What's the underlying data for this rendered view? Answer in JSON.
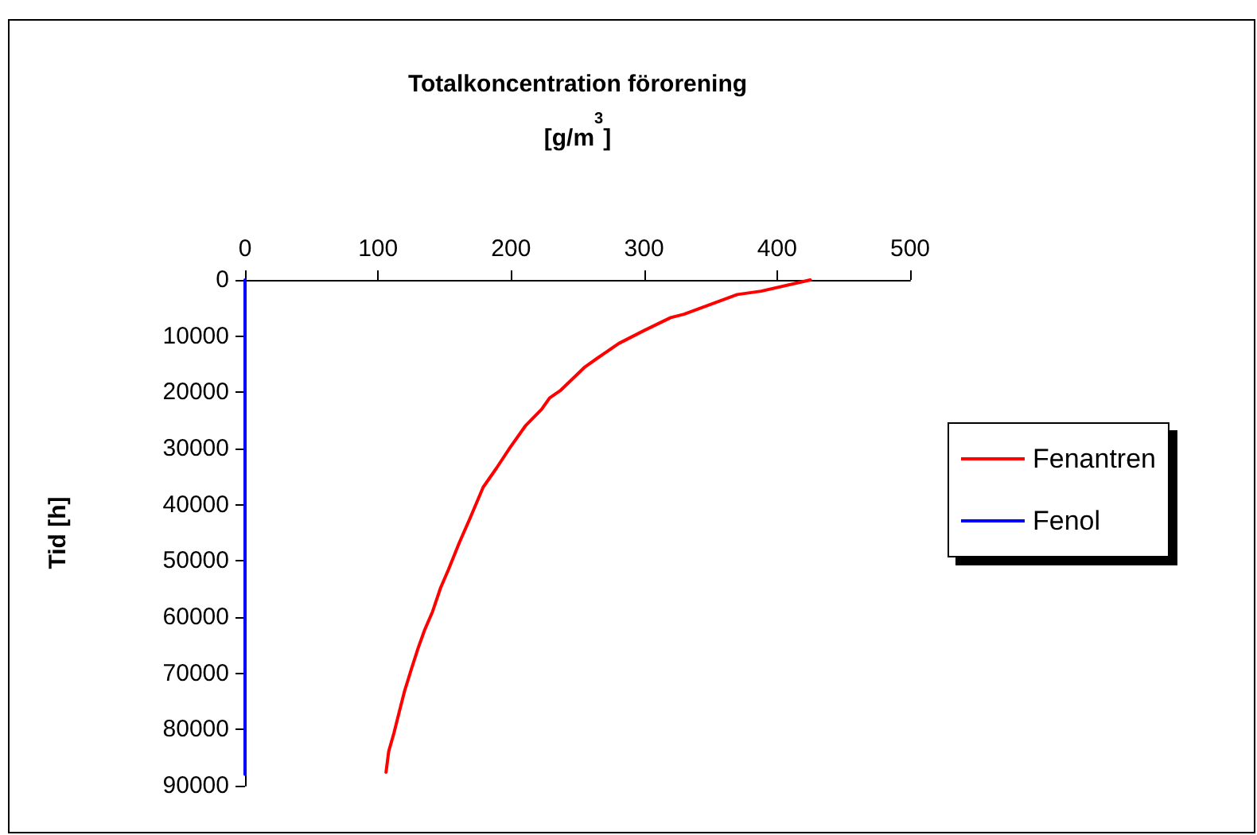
{
  "chart_data": {
    "type": "line",
    "xlabel": "Totalkoncentration förorening [g/m$^{3}$]",
    "ylabel": "Tid [h]",
    "xlim": [
      0,
      500
    ],
    "xticks": [
      0,
      100,
      200,
      300,
      400,
      500
    ],
    "ylim": [
      90000,
      0
    ],
    "yticks": [
      0,
      10000,
      20000,
      30000,
      40000,
      50000,
      60000,
      70000,
      80000,
      90000
    ],
    "series": [
      {
        "name": "Fenantren",
        "color": "#ff0000",
        "x": [
          425,
          388,
          370,
          330,
          320,
          300,
          281,
          265,
          255,
          237,
          229,
          223,
          211,
          199,
          189,
          179,
          169,
          161,
          153,
          147,
          141,
          135,
          130,
          125,
          120,
          116,
          112,
          108,
          106
        ],
        "values": [
          0,
          2000,
          2600,
          6100,
          6700,
          9000,
          11300,
          13900,
          15600,
          19700,
          21000,
          23000,
          25900,
          29900,
          33500,
          36900,
          42500,
          46800,
          51500,
          54800,
          59000,
          62300,
          65600,
          69300,
          73100,
          76800,
          80600,
          83900,
          87600
        ]
      },
      {
        "name": "Fenol",
        "color": "#0000ff",
        "x": [
          0,
          0,
          0,
          0,
          0
        ],
        "values": [
          0,
          22000,
          44000,
          66000,
          88000
        ]
      }
    ],
    "legend": "right",
    "grid": false,
    "marker": "none",
    "line_style": "solid"
  }
}
